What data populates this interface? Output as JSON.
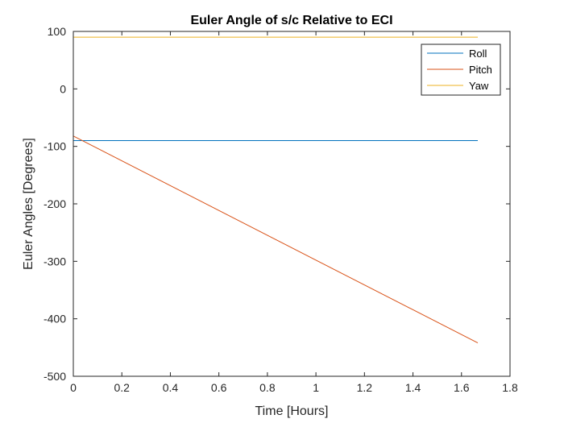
{
  "chart_data": {
    "type": "line",
    "title": "Euler Angle of s/c Relative to ECI",
    "xlabel": "Time [Hours]",
    "ylabel": "Euler Angles [Degrees]",
    "xlim": [
      0,
      1.8
    ],
    "ylim": [
      -500,
      100
    ],
    "xticks": [
      0,
      0.2,
      0.4,
      0.6,
      0.8,
      1,
      1.2,
      1.4,
      1.6,
      1.8
    ],
    "xtick_labels": [
      "0",
      "0.2",
      "0.4",
      "0.6",
      "0.8",
      "1",
      "1.2",
      "1.4",
      "1.6",
      "1.8"
    ],
    "yticks": [
      -500,
      -400,
      -300,
      -200,
      -100,
      0,
      100
    ],
    "ytick_labels": [
      "-500",
      "-400",
      "-300",
      "-200",
      "-100",
      "0",
      "100"
    ],
    "grid": false,
    "legend_position": "top-right",
    "series": [
      {
        "name": "Roll",
        "color": "#0072BD",
        "x": [
          0,
          1.667
        ],
        "y": [
          -90,
          -90
        ]
      },
      {
        "name": "Pitch",
        "color": "#D95319",
        "x": [
          0,
          1.667
        ],
        "y": [
          -82,
          -442
        ]
      },
      {
        "name": "Yaw",
        "color": "#EDB120",
        "x": [
          0,
          1.667
        ],
        "y": [
          90,
          90
        ]
      }
    ]
  }
}
